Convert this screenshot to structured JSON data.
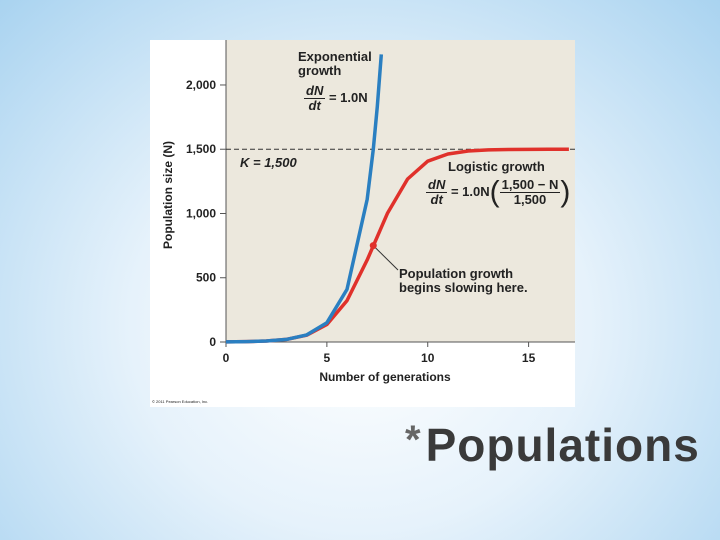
{
  "chart_data": {
    "type": "line",
    "x_label": "Number of generations",
    "y_label": "Population size (N)",
    "xlim": [
      0,
      17.3
    ],
    "ylim": [
      0,
      2350
    ],
    "xticks": [
      0,
      5,
      10,
      15
    ],
    "yticks": [
      0,
      500,
      {
        "value": 1000,
        "label": "1,000"
      },
      {
        "value": 1500,
        "label": "1,500"
      },
      {
        "value": 2000,
        "label": "2,000"
      }
    ],
    "series": [
      {
        "name": "Exponential growth",
        "color": "#2a7fc1",
        "x": [
          0,
          1,
          2,
          3,
          4,
          5,
          6,
          7,
          7.3,
          7.5,
          7.7
        ],
        "values": [
          1,
          3,
          7.5,
          20,
          55,
          150,
          409,
          1111,
          1500,
          1832,
          2238
        ]
      },
      {
        "name": "Logistic growth",
        "color": "#e0312b",
        "x": [
          0,
          1,
          2,
          3,
          4,
          5,
          6,
          7,
          8,
          9,
          10,
          11,
          12,
          13,
          14,
          15,
          16,
          17
        ],
        "values": [
          1,
          3,
          7.5,
          20,
          53,
          136,
          322,
          639,
          1001,
          1268,
          1407,
          1463,
          1486,
          1495,
          1498,
          1499,
          1500,
          1500
        ]
      }
    ],
    "k_value": 1500,
    "k_label": "K = 1,500",
    "exp_equation": {
      "numerator": "dN",
      "denominator": "dt",
      "rhs": "= 1.0N"
    },
    "logistic_equation": {
      "numerator": "dN",
      "denominator": "dt",
      "rhs": "= 1.0N",
      "factor_numerator": "1,500 − N",
      "factor_denominator": "1,500"
    },
    "highlight_point": {
      "x": 7.3,
      "y": 750,
      "label": "Population growth begins slowing here."
    },
    "credit": "© 2011 Pearson Education, Inc."
  },
  "slide": {
    "bullet": "*",
    "title": "Populations"
  }
}
